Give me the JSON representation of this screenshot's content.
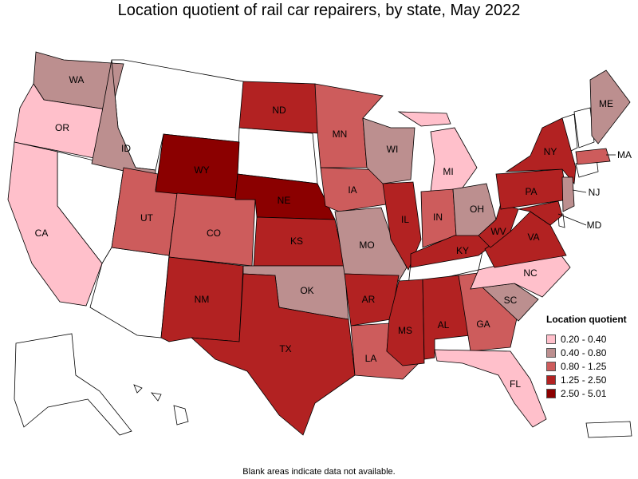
{
  "title": "Location quotient of rail car repairers, by state, May 2022",
  "footnote": "Blank areas indicate data not available.",
  "legend": {
    "title": "Location quotient",
    "items": [
      {
        "label": "0.20 - 0.40",
        "color": "#ffc0cb"
      },
      {
        "label": "0.40 - 0.80",
        "color": "#bc8f8f"
      },
      {
        "label": "0.80 - 1.25",
        "color": "#cd5c5c"
      },
      {
        "label": "1.25 - 2.50",
        "color": "#b22222"
      },
      {
        "label": "2.50 - 5.01",
        "color": "#8b0000"
      }
    ]
  },
  "states": {
    "WA": {
      "label": "WA",
      "class": 1
    },
    "OR": {
      "label": "OR",
      "class": 0
    },
    "CA": {
      "label": "CA",
      "class": 0
    },
    "ID": {
      "label": "ID",
      "class": 1
    },
    "UT": {
      "label": "UT",
      "class": 2
    },
    "WY": {
      "label": "WY",
      "class": 4
    },
    "CO": {
      "label": "CO",
      "class": 2
    },
    "NM": {
      "label": "NM",
      "class": 3
    },
    "ND": {
      "label": "ND",
      "class": 3
    },
    "NE": {
      "label": "NE",
      "class": 4
    },
    "KS": {
      "label": "KS",
      "class": 3
    },
    "OK": {
      "label": "OK",
      "class": 1
    },
    "TX": {
      "label": "TX",
      "class": 3
    },
    "MN": {
      "label": "MN",
      "class": 2
    },
    "IA": {
      "label": "IA",
      "class": 2
    },
    "MO": {
      "label": "MO",
      "class": 1
    },
    "AR": {
      "label": "AR",
      "class": 3
    },
    "LA": {
      "label": "LA",
      "class": 2
    },
    "WI": {
      "label": "WI",
      "class": 1
    },
    "IL": {
      "label": "IL",
      "class": 3
    },
    "MS": {
      "label": "MS",
      "class": 3
    },
    "MI": {
      "label": "MI",
      "class": 0
    },
    "IN": {
      "label": "IN",
      "class": 2
    },
    "KY": {
      "label": "KY",
      "class": 3
    },
    "AL": {
      "label": "AL",
      "class": 3
    },
    "OH": {
      "label": "OH",
      "class": 1
    },
    "GA": {
      "label": "GA",
      "class": 2
    },
    "FL": {
      "label": "FL",
      "class": 0
    },
    "SC": {
      "label": "SC",
      "class": 1
    },
    "NC": {
      "label": "NC",
      "class": 0
    },
    "VA": {
      "label": "VA",
      "class": 3
    },
    "WV": {
      "label": "WV",
      "class": 3
    },
    "PA": {
      "label": "PA",
      "class": 3
    },
    "NY": {
      "label": "NY",
      "class": 3
    },
    "NJ": {
      "label": "NJ",
      "class": 1
    },
    "MD": {
      "label": "MD",
      "class": 3
    },
    "ME": {
      "label": "ME",
      "class": 1
    },
    "MA": {
      "label": "MA",
      "class": 2
    }
  }
}
